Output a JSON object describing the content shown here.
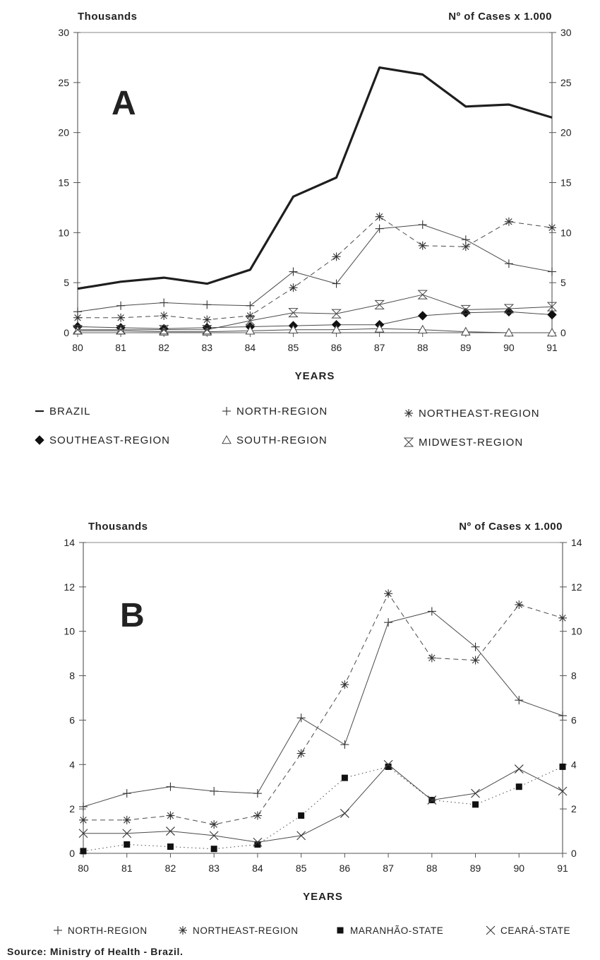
{
  "source": "Source: Ministry of Health - Brazil.",
  "chart_data": [
    {
      "type": "line",
      "panel_label": "A",
      "ylabel_left": "Thousands",
      "ylabel_right": "Nº of Cases x 1.000",
      "xlabel": "YEARS",
      "x": [
        "80",
        "81",
        "82",
        "83",
        "84",
        "85",
        "86",
        "87",
        "88",
        "89",
        "90",
        "91"
      ],
      "ylim": [
        0,
        30
      ],
      "yticks": [
        0,
        5,
        10,
        15,
        20,
        25,
        30
      ],
      "legend_position": "bottom",
      "series": [
        {
          "name": "BRAZIL",
          "marker": "none",
          "dash": "solid",
          "width": 3.2,
          "values": [
            4.4,
            5.1,
            5.5,
            4.9,
            6.3,
            13.6,
            15.5,
            26.5,
            25.8,
            22.6,
            22.8,
            21.5
          ]
        },
        {
          "name": "NORTH-REGION",
          "marker": "plus",
          "dash": "solid",
          "width": 1,
          "values": [
            2.1,
            2.7,
            3.0,
            2.8,
            2.7,
            6.1,
            4.9,
            10.4,
            10.8,
            9.3,
            6.9,
            6.1
          ]
        },
        {
          "name": "NORTHEAST-REGION",
          "marker": "asterisk",
          "dash": "dashed",
          "width": 1,
          "values": [
            1.5,
            1.5,
            1.7,
            1.3,
            1.7,
            4.5,
            7.6,
            11.6,
            8.7,
            8.6,
            11.1,
            10.5
          ]
        },
        {
          "name": "SOUTHEAST-REGION",
          "marker": "diamond",
          "dash": "solid",
          "width": 1,
          "values": [
            0.6,
            0.5,
            0.4,
            0.5,
            0.6,
            0.7,
            0.8,
            0.8,
            1.7,
            2.0,
            2.1,
            1.8
          ]
        },
        {
          "name": "SOUTH-REGION",
          "marker": "triangle",
          "dash": "solid",
          "width": 1,
          "values": [
            0.2,
            0.2,
            0.1,
            0.1,
            0.2,
            0.3,
            0.3,
            0.4,
            0.3,
            0.1,
            0.0,
            0.0
          ]
        },
        {
          "name": "MIDWEST-REGION",
          "marker": "hourglass",
          "dash": "solid",
          "width": 1,
          "values": [
            0.3,
            0.3,
            0.3,
            0.3,
            1.2,
            2.0,
            1.9,
            2.8,
            3.8,
            2.3,
            2.4,
            2.6
          ]
        }
      ]
    },
    {
      "type": "line",
      "panel_label": "B",
      "ylabel_left": "Thousands",
      "ylabel_right": "Nº of Cases x 1.000",
      "xlabel": "YEARS",
      "x": [
        "80",
        "81",
        "82",
        "83",
        "84",
        "85",
        "86",
        "87",
        "88",
        "89",
        "90",
        "91"
      ],
      "ylim": [
        0,
        14
      ],
      "yticks": [
        0,
        2,
        4,
        6,
        8,
        10,
        12,
        14
      ],
      "legend_position": "bottom",
      "series": [
        {
          "name": "NORTH-REGION",
          "marker": "plus",
          "dash": "solid",
          "width": 1,
          "values": [
            2.1,
            2.7,
            3.0,
            2.8,
            2.7,
            6.1,
            4.9,
            10.4,
            10.9,
            9.3,
            6.9,
            6.2
          ]
        },
        {
          "name": "NORTHEAST-REGION",
          "marker": "asterisk",
          "dash": "dashed",
          "width": 1,
          "values": [
            1.5,
            1.5,
            1.7,
            1.3,
            1.7,
            4.5,
            7.6,
            11.7,
            8.8,
            8.7,
            11.2,
            10.6
          ]
        },
        {
          "name": "MARANHÃO-STATE",
          "marker": "square",
          "dash": "dotted",
          "width": 1,
          "values": [
            0.1,
            0.4,
            0.3,
            0.2,
            0.4,
            1.7,
            3.4,
            3.9,
            2.4,
            2.2,
            3.0,
            3.9
          ]
        },
        {
          "name": "CEARÁ-STATE",
          "marker": "x",
          "dash": "solid",
          "width": 1,
          "values": [
            0.9,
            0.9,
            1.0,
            0.8,
            0.5,
            0.8,
            1.8,
            4.0,
            2.4,
            2.7,
            3.8,
            2.8
          ]
        }
      ]
    }
  ]
}
